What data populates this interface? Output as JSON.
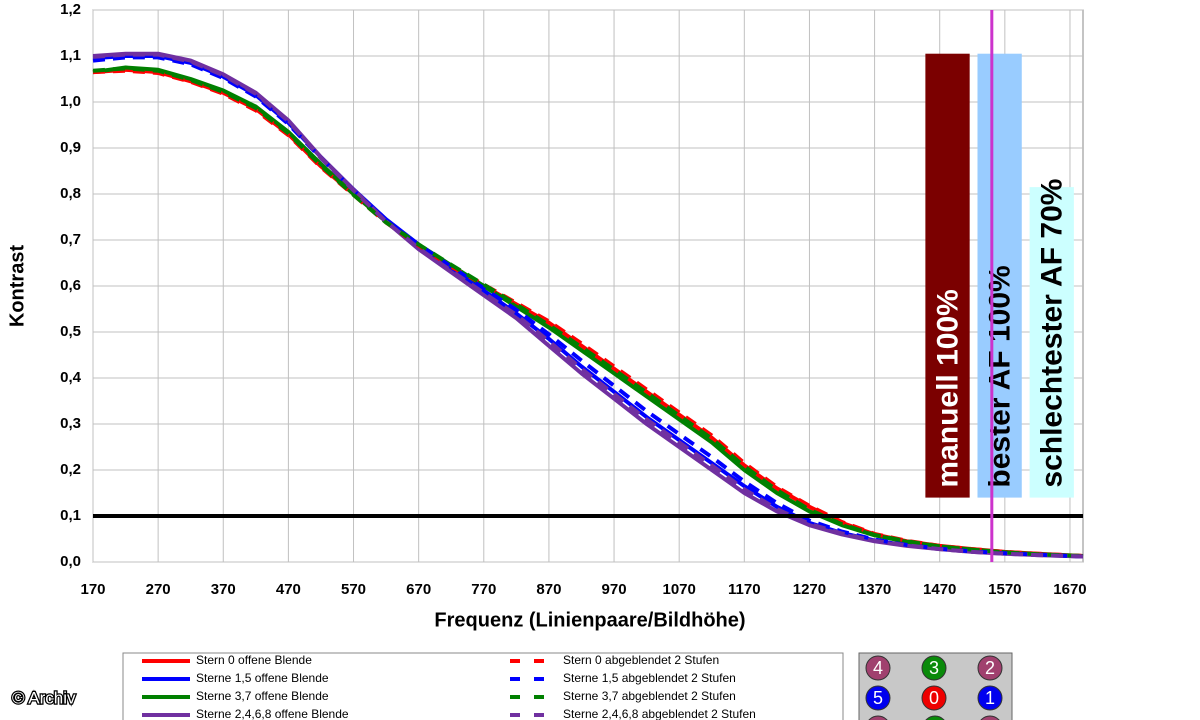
{
  "chart_data": {
    "type": "line",
    "xlabel": "Frequenz (Linienpaare/Bildhöhe)",
    "ylabel": "Kontrast",
    "xlim": [
      170,
      1690
    ],
    "ylim": [
      0,
      1.2
    ],
    "xticks": [
      170,
      270,
      370,
      470,
      570,
      670,
      770,
      870,
      970,
      1070,
      1170,
      1270,
      1370,
      1470,
      1570,
      1670
    ],
    "yticks": [
      {
        "value": 0,
        "label": "0,0"
      },
      {
        "value": 0.1,
        "label": "0,1"
      },
      {
        "value": 0.2,
        "label": "0,2"
      },
      {
        "value": 0.3,
        "label": "0,3"
      },
      {
        "value": 0.4,
        "label": "0,4"
      },
      {
        "value": 0.5,
        "label": "0,5"
      },
      {
        "value": 0.6,
        "label": "0,6"
      },
      {
        "value": 0.7,
        "label": "0,7"
      },
      {
        "value": 0.8,
        "label": "0,8"
      },
      {
        "value": 0.9,
        "label": "0,9"
      },
      {
        "value": 1.0,
        "label": "1,0"
      },
      {
        "value": 1.1,
        "label": "1,1"
      },
      {
        "value": 1.2,
        "label": "1,2"
      }
    ],
    "grid": true,
    "x": [
      170,
      220,
      270,
      320,
      370,
      420,
      470,
      520,
      570,
      620,
      670,
      720,
      770,
      820,
      870,
      920,
      970,
      1020,
      1070,
      1120,
      1170,
      1220,
      1270,
      1320,
      1370,
      1420,
      1470,
      1520,
      1570,
      1620,
      1690
    ],
    "series": [
      {
        "name": "Stern 0 offene Blende",
        "color": "#ff0000",
        "dashed": false,
        "values": [
          1.065,
          1.07,
          1.065,
          1.045,
          1.02,
          0.985,
          0.93,
          0.86,
          0.8,
          0.74,
          0.69,
          0.64,
          0.6,
          0.56,
          0.52,
          0.47,
          0.42,
          0.37,
          0.32,
          0.27,
          0.21,
          0.16,
          0.12,
          0.085,
          0.06,
          0.045,
          0.035,
          0.028,
          0.022,
          0.018,
          0.013
        ]
      },
      {
        "name": "Sterne 1,5 offene Blende",
        "color": "#0000ff",
        "dashed": false,
        "values": [
          1.095,
          1.1,
          1.1,
          1.085,
          1.055,
          1.015,
          0.955,
          0.88,
          0.81,
          0.745,
          0.69,
          0.64,
          0.59,
          0.54,
          0.485,
          0.425,
          0.37,
          0.315,
          0.265,
          0.215,
          0.165,
          0.12,
          0.085,
          0.063,
          0.047,
          0.036,
          0.029,
          0.023,
          0.019,
          0.016,
          0.012
        ]
      },
      {
        "name": "Sterne 3,7 offene Blende",
        "color": "#008000",
        "dashed": false,
        "values": [
          1.065,
          1.075,
          1.07,
          1.05,
          1.025,
          0.99,
          0.935,
          0.865,
          0.8,
          0.74,
          0.69,
          0.645,
          0.6,
          0.555,
          0.51,
          0.46,
          0.41,
          0.36,
          0.31,
          0.26,
          0.2,
          0.15,
          0.11,
          0.08,
          0.058,
          0.044,
          0.034,
          0.027,
          0.021,
          0.017,
          0.013
        ]
      },
      {
        "name": "Sterne 2,4,6,8 offene Blende",
        "color": "#7030a0",
        "dashed": false,
        "values": [
          1.1,
          1.105,
          1.105,
          1.09,
          1.06,
          1.02,
          0.96,
          0.88,
          0.81,
          0.74,
          0.68,
          0.63,
          0.58,
          0.53,
          0.47,
          0.41,
          0.355,
          0.3,
          0.25,
          0.2,
          0.15,
          0.11,
          0.08,
          0.06,
          0.045,
          0.035,
          0.028,
          0.022,
          0.018,
          0.015,
          0.012
        ]
      },
      {
        "name": "Stern 0 abgeblendet 2 Stufen",
        "color": "#ff0000",
        "dashed": true,
        "values": [
          1.065,
          1.068,
          1.063,
          1.044,
          1.018,
          0.982,
          0.928,
          0.858,
          0.798,
          0.738,
          0.688,
          0.642,
          0.603,
          0.563,
          0.523,
          0.475,
          0.425,
          0.375,
          0.325,
          0.275,
          0.215,
          0.163,
          0.122,
          0.087,
          0.061,
          0.046,
          0.035,
          0.028,
          0.022,
          0.018,
          0.013
        ]
      },
      {
        "name": "Sterne 1,5 abgeblendet 2 Stufen",
        "color": "#0000ff",
        "dashed": true,
        "values": [
          1.09,
          1.097,
          1.097,
          1.082,
          1.052,
          1.012,
          0.952,
          0.878,
          0.808,
          0.743,
          0.69,
          0.642,
          0.595,
          0.548,
          0.495,
          0.438,
          0.383,
          0.328,
          0.278,
          0.228,
          0.175,
          0.128,
          0.09,
          0.066,
          0.049,
          0.037,
          0.029,
          0.023,
          0.019,
          0.016,
          0.012
        ]
      },
      {
        "name": "Sterne 3,7 abgeblendet 2 Stufen",
        "color": "#008000",
        "dashed": true,
        "values": [
          1.068,
          1.073,
          1.068,
          1.048,
          1.022,
          0.987,
          0.932,
          0.862,
          0.798,
          0.738,
          0.69,
          0.646,
          0.603,
          0.56,
          0.515,
          0.467,
          0.418,
          0.368,
          0.318,
          0.268,
          0.208,
          0.156,
          0.114,
          0.082,
          0.059,
          0.045,
          0.034,
          0.027,
          0.021,
          0.017,
          0.013
        ]
      },
      {
        "name": "Sterne 2,4,6,8 abgeblendet 2 Stufen",
        "color": "#7030a0",
        "dashed": true,
        "values": [
          1.098,
          1.103,
          1.103,
          1.088,
          1.058,
          1.018,
          0.958,
          0.878,
          0.808,
          0.74,
          0.682,
          0.633,
          0.585,
          0.537,
          0.48,
          0.42,
          0.365,
          0.31,
          0.26,
          0.21,
          0.158,
          0.115,
          0.083,
          0.062,
          0.046,
          0.036,
          0.028,
          0.022,
          0.018,
          0.015,
          0.012
        ]
      }
    ],
    "reference_line": 0.1,
    "marker_line": {
      "x": 1550,
      "color": "#cc33cc"
    },
    "bars": {
      "base": 0.14,
      "width": 68,
      "items": [
        {
          "label": "manuell 100%",
          "x": 1482,
          "top": 1.105,
          "color": "#7b0000",
          "text_color": "#ffffff"
        },
        {
          "label": "bester AF 100%",
          "x": 1562,
          "top": 1.105,
          "color": "#99ccff",
          "text_color": "#000000"
        },
        {
          "label": "schlechtester AF 70%",
          "x": 1642,
          "top": 0.815,
          "color": "#ccffff",
          "text_color": "#000000"
        }
      ]
    },
    "star_map": [
      [
        "4",
        "3",
        "2"
      ],
      [
        "5",
        "0",
        "1"
      ]
    ],
    "credit": "© Archiv"
  }
}
